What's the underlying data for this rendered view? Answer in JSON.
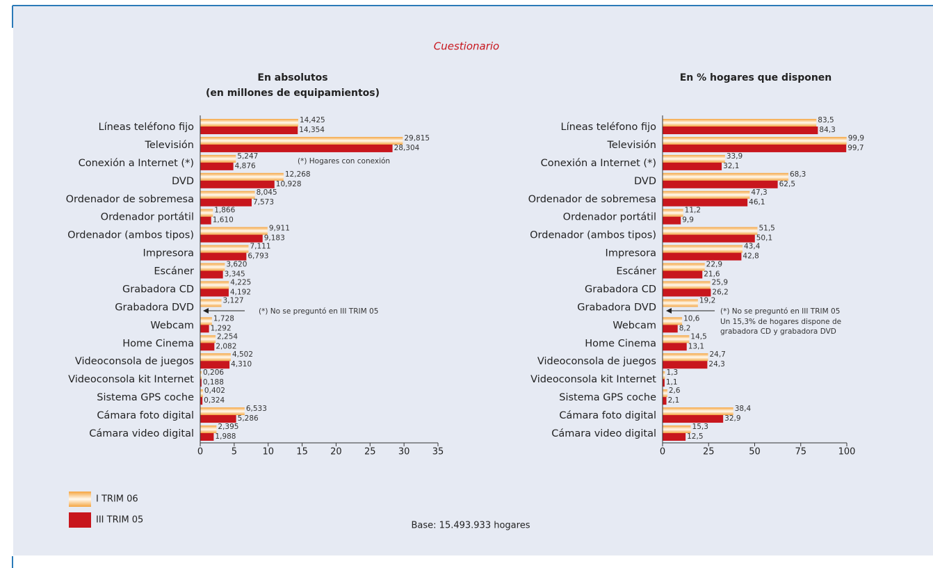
{
  "title": "Cuestionario",
  "footnote": "Base: 15.493.933 hogares",
  "chart_data": [
    {
      "type": "bar",
      "orientation": "horizontal",
      "title": "En absolutos",
      "subtitle": "(en millones de equipamientos)",
      "categories": [
        "Líneas teléfono fijo",
        "Televisión",
        "Conexión a Internet (*)",
        "DVD",
        "Ordenador de sobremesa",
        "Ordenador portátil",
        "Ordenador (ambos tipos)",
        "Impresora",
        "Escáner",
        "Grabadora CD",
        "Grabadora DVD",
        "Webcam",
        "Home Cinema",
        "Videoconsola de juegos",
        "Videoconsola kit Internet",
        "Sistema GPS coche",
        "Cámara foto digital",
        "Cámara video digital"
      ],
      "series": [
        {
          "name": "I TRIM 06",
          "color": "#f5a540",
          "values": [
            14.425,
            29.815,
            5.247,
            12.268,
            8.045,
            1.866,
            9.911,
            7.111,
            3.62,
            4.225,
            3.127,
            1.728,
            2.254,
            4.502,
            0.206,
            0.402,
            6.533,
            2.395
          ],
          "value_labels": [
            "14,425",
            "29,815",
            "5,247",
            "12,268",
            "8,045",
            "1,866",
            "9,911",
            "7,111",
            "3,620",
            "4,225",
            "3,127",
            "1,728",
            "2,254",
            "4,502",
            "0,206",
            "0,402",
            "6,533",
            "2,395"
          ]
        },
        {
          "name": "III TRIM 05",
          "color": "#c8161d",
          "values": [
            14.354,
            28.304,
            4.876,
            10.928,
            7.573,
            1.61,
            9.183,
            6.793,
            3.345,
            4.192,
            null,
            1.292,
            2.082,
            4.31,
            0.188,
            0.324,
            5.286,
            1.988
          ],
          "value_labels": [
            "14,354",
            "28,304",
            "4,876",
            "10,928",
            "7,573",
            "1,610",
            "9,183",
            "6,793",
            "3,345",
            "4,192",
            null,
            "1,292",
            "2,082",
            "4,310",
            "0,188",
            "0,324",
            "5,286",
            "1,988"
          ]
        }
      ],
      "xlim": [
        0,
        35
      ],
      "xticks": [
        0,
        5,
        10,
        15,
        20,
        25,
        30,
        35
      ],
      "annotations": [
        "(*) Hogares con conexión",
        "(*) No se preguntó en III TRIM 05"
      ]
    },
    {
      "type": "bar",
      "orientation": "horizontal",
      "title": "En % hogares que disponen",
      "categories": [
        "Líneas teléfono fijo",
        "Televisión",
        "Conexión a Internet (*)",
        "DVD",
        "Ordenador de sobremesa",
        "Ordenador portátil",
        "Ordenador (ambos tipos)",
        "Impresora",
        "Escáner",
        "Grabadora CD",
        "Grabadora DVD",
        "Webcam",
        "Home Cinema",
        "Videoconsola de juegos",
        "Videoconsola kit Internet",
        "Sistema GPS coche",
        "Cámara foto digital",
        "Cámara video digital"
      ],
      "series": [
        {
          "color": "#f5a540",
          "values": [
            83.5,
            99.9,
            33.9,
            68.3,
            47.3,
            11.2,
            51.5,
            43.4,
            22.9,
            25.9,
            19.2,
            10.6,
            14.5,
            24.7,
            1.3,
            2.6,
            38.4,
            15.3
          ],
          "value_labels": [
            "83,5",
            "99,9",
            "33,9",
            "68,3",
            "47,3",
            "11,2",
            "51,5",
            "43,4",
            "22,9",
            "25,9",
            "19,2",
            "10,6",
            "14,5",
            "24,7",
            "1,3",
            "2,6",
            "38,4",
            "15,3"
          ]
        },
        {
          "color": "#c8161d",
          "values": [
            84.3,
            99.7,
            32.1,
            62.5,
            46.1,
            9.9,
            50.1,
            42.8,
            21.6,
            26.2,
            null,
            8.2,
            13.1,
            24.3,
            1.1,
            2.1,
            32.9,
            12.5
          ],
          "value_labels": [
            "84,3",
            "99,7",
            "32,1",
            "62,5",
            "46,1",
            "9,9",
            "50,1",
            "42,8",
            "21,6",
            "26,2",
            null,
            "8,2",
            "13,1",
            "24,3",
            "1,1",
            "2,1",
            "32,9",
            "12,5"
          ]
        }
      ],
      "xlim": [
        0,
        100
      ],
      "xticks": [
        0,
        25,
        50,
        75,
        100
      ],
      "annotations": [
        "(*) No se preguntó en III TRIM 05",
        "Un 15,3% de hogares dispone de",
        "grabadora CD y grabadora DVD"
      ]
    }
  ]
}
